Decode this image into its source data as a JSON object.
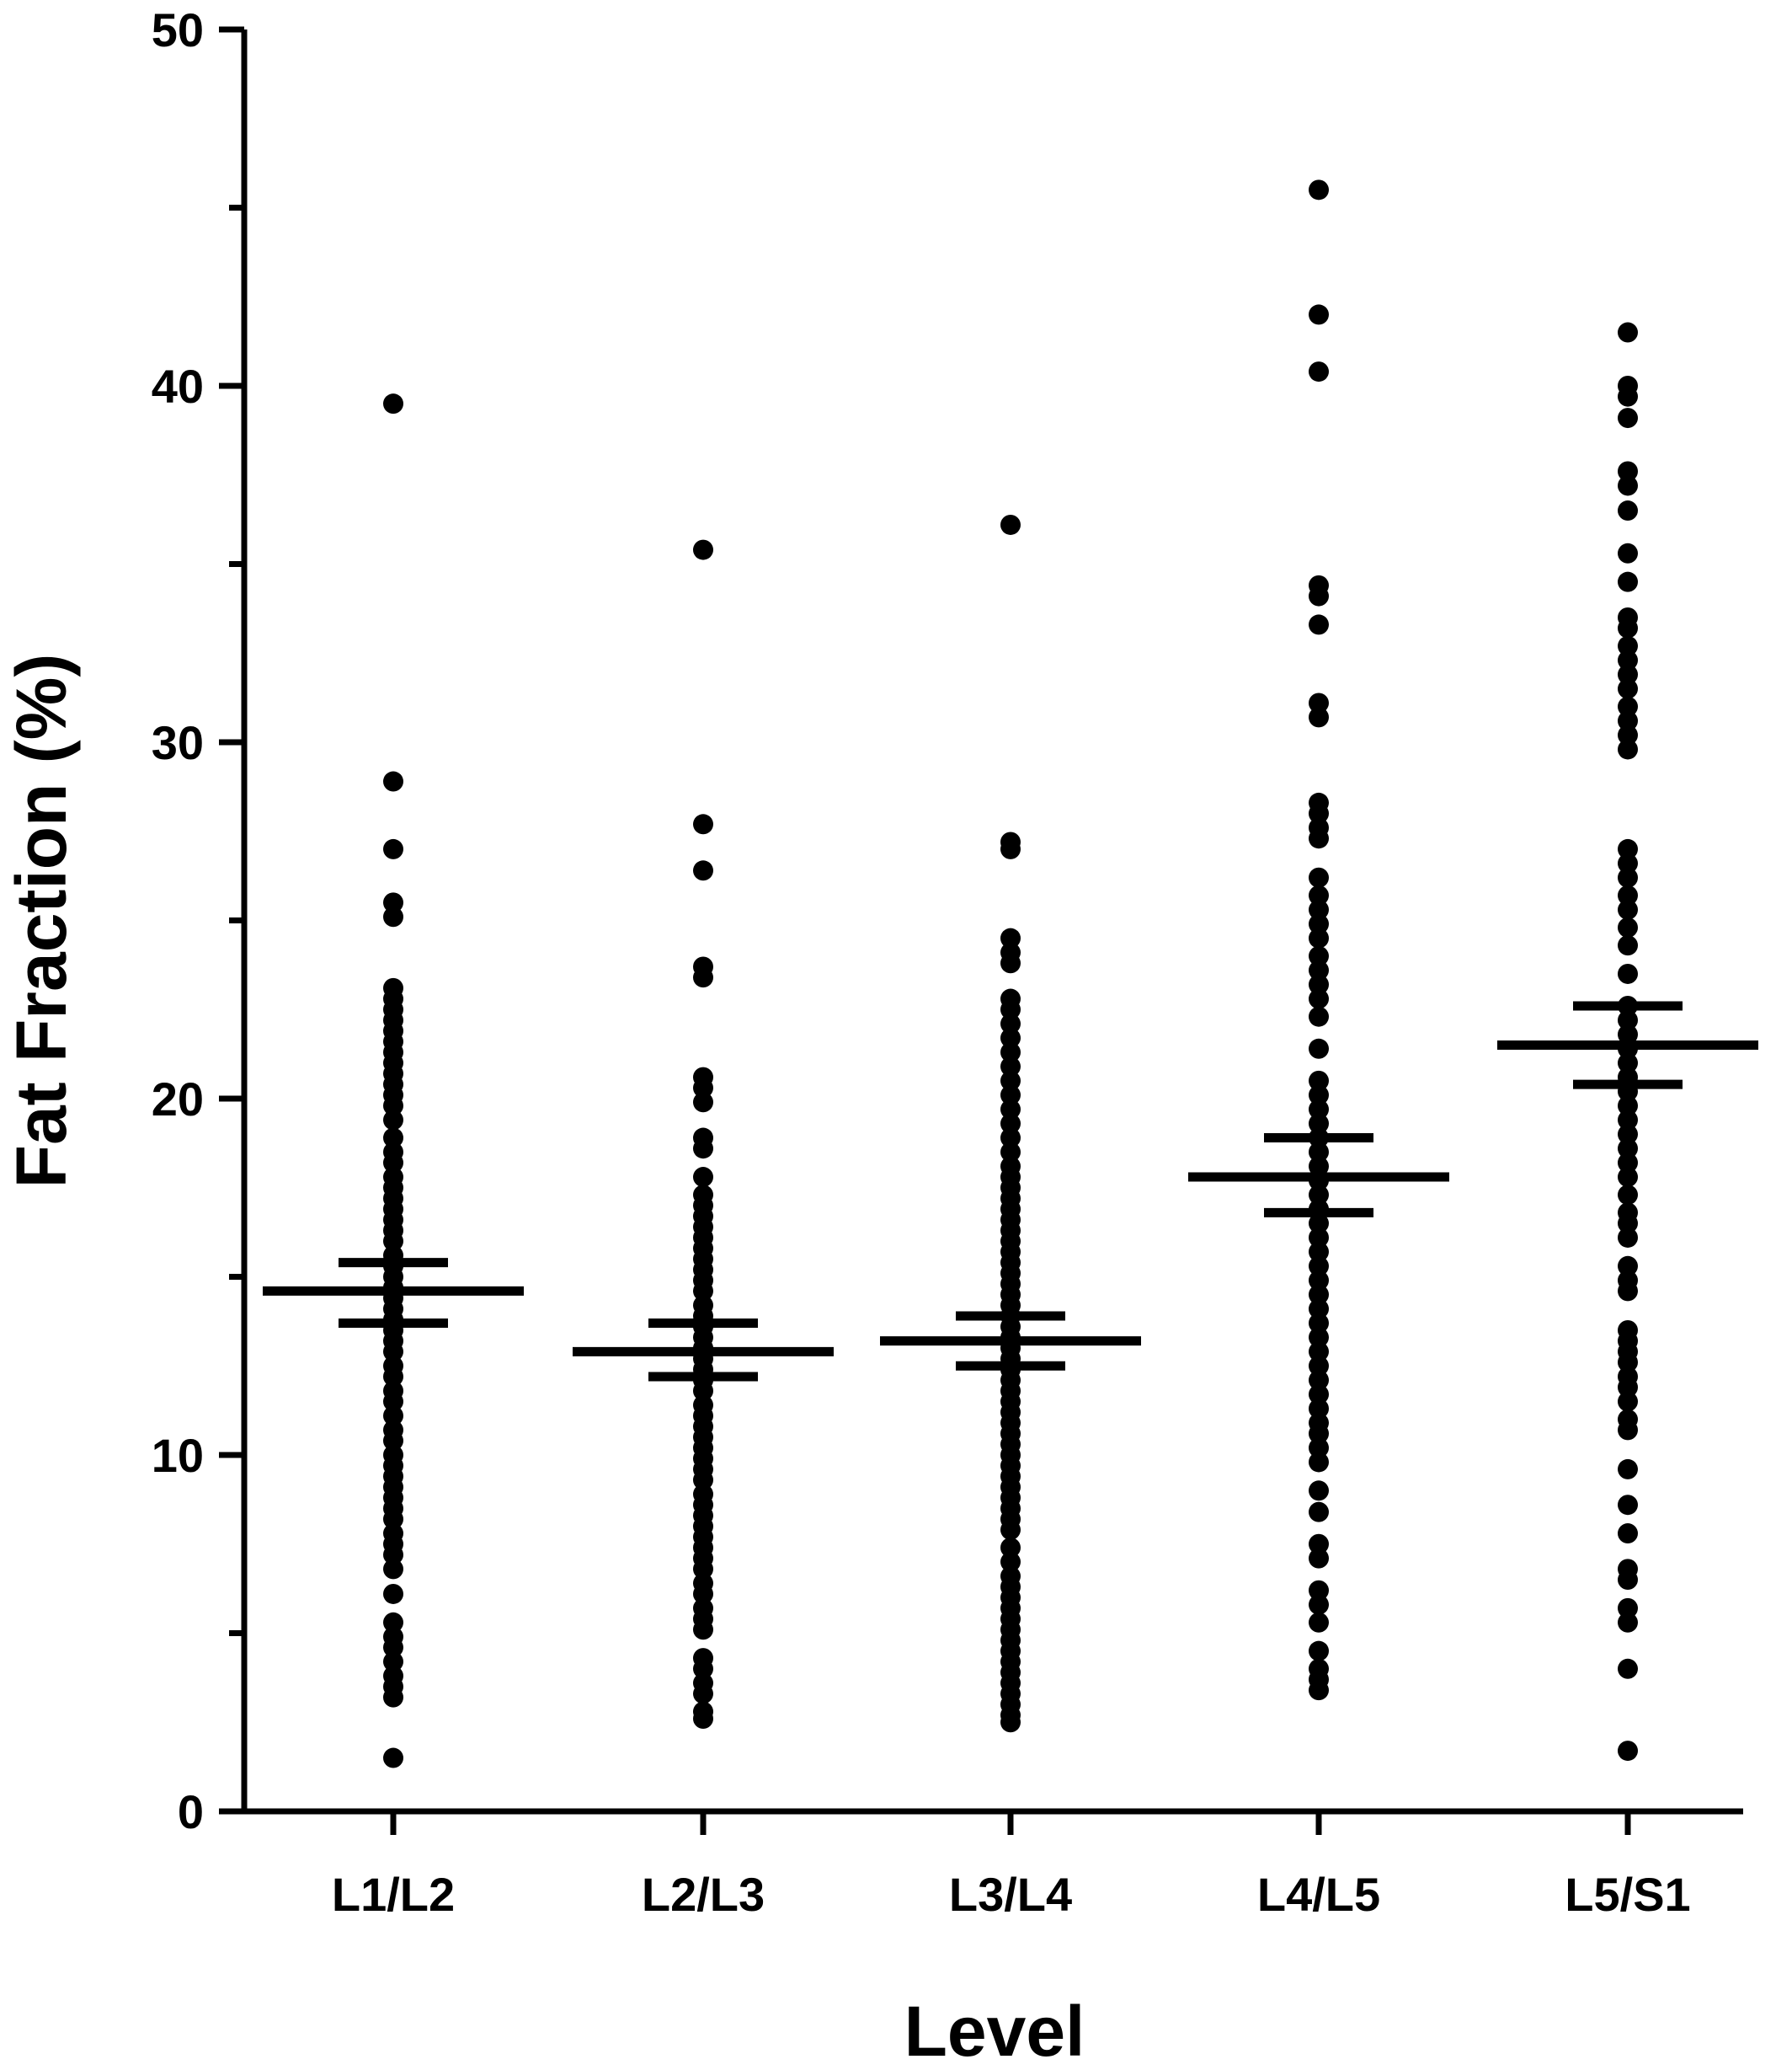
{
  "chart_data": {
    "type": "scatter",
    "subtype": "column scatter (dot plot) with mean and error bars",
    "title": "",
    "xlabel": "Level",
    "ylabel": "Fat Fraction (%)",
    "ylim": [
      0,
      50
    ],
    "y_major_ticks": [
      0,
      10,
      20,
      30,
      40,
      50
    ],
    "y_tick_labels": [
      "0",
      "10",
      "20",
      "30",
      "40",
      "50"
    ],
    "y_minor_ticks": [
      5,
      15,
      25,
      35,
      45
    ],
    "categories": [
      "L1/L2",
      "L2/L3",
      "L3/L4",
      "L4/L5",
      "L5/S1"
    ],
    "grid": false,
    "legend": "none",
    "color": "#000000",
    "series": [
      {
        "category": "L1/L2",
        "mean": 14.6,
        "error": [
          13.7,
          15.4
        ],
        "points": [
          39.5,
          28.9,
          27.0,
          25.5,
          25.1,
          23.1,
          22.8,
          22.5,
          22.2,
          21.9,
          21.6,
          21.3,
          21.0,
          20.7,
          20.4,
          20.1,
          19.8,
          19.4,
          18.9,
          18.5,
          18.2,
          17.8,
          17.5,
          17.2,
          16.9,
          16.6,
          16.3,
          16.0,
          15.6,
          15.3,
          15.0,
          14.7,
          14.4,
          14.1,
          13.8,
          13.5,
          13.2,
          12.9,
          12.5,
          12.2,
          11.8,
          11.5,
          11.1,
          10.7,
          10.4,
          10.0,
          9.7,
          9.4,
          9.1,
          8.8,
          8.5,
          8.2,
          7.8,
          7.5,
          7.2,
          6.8,
          6.1,
          5.3,
          4.9,
          4.6,
          4.2,
          3.8,
          3.5,
          3.2,
          1.5
        ]
      },
      {
        "category": "L2/L3",
        "mean": 12.9,
        "error": [
          12.2,
          13.7
        ],
        "points": [
          35.4,
          27.7,
          26.4,
          23.7,
          23.4,
          20.6,
          20.3,
          19.9,
          18.9,
          18.6,
          17.8,
          17.3,
          17.0,
          16.7,
          16.4,
          16.1,
          15.8,
          15.5,
          15.2,
          14.9,
          14.6,
          14.2,
          13.9,
          13.6,
          13.3,
          13.0,
          12.7,
          12.4,
          12.1,
          11.8,
          11.4,
          11.1,
          10.8,
          10.5,
          10.2,
          9.9,
          9.6,
          9.3,
          8.9,
          8.6,
          8.3,
          8.0,
          7.7,
          7.4,
          7.1,
          6.8,
          6.4,
          6.1,
          5.7,
          5.4,
          5.1,
          4.3,
          4.0,
          3.6,
          3.3,
          2.8,
          2.6
        ]
      },
      {
        "category": "L3/L4",
        "mean": 13.2,
        "error": [
          12.5,
          13.9
        ],
        "points": [
          36.1,
          27.2,
          27.0,
          24.5,
          24.1,
          23.8,
          22.8,
          22.5,
          22.1,
          21.7,
          21.3,
          20.9,
          20.5,
          20.1,
          19.7,
          19.3,
          18.9,
          18.5,
          18.1,
          17.8,
          17.5,
          17.2,
          16.9,
          16.6,
          16.3,
          16.0,
          15.7,
          15.4,
          15.1,
          14.8,
          14.5,
          14.2,
          13.9,
          13.6,
          13.3,
          13.0,
          12.7,
          12.4,
          12.1,
          11.8,
          11.5,
          11.2,
          10.9,
          10.6,
          10.3,
          10.0,
          9.7,
          9.4,
          9.1,
          8.8,
          8.5,
          8.2,
          7.9,
          7.4,
          7.0,
          6.6,
          6.3,
          6.0,
          5.7,
          5.4,
          5.1,
          4.8,
          4.5,
          4.2,
          3.9,
          3.6,
          3.3,
          3.0,
          2.7,
          2.5
        ]
      },
      {
        "category": "L4/L5",
        "mean": 17.8,
        "error": [
          16.8,
          18.9
        ],
        "points": [
          45.5,
          42.0,
          40.4,
          34.4,
          34.1,
          33.3,
          31.1,
          30.7,
          28.3,
          28.0,
          27.6,
          27.3,
          26.2,
          25.7,
          25.3,
          24.9,
          24.5,
          24.0,
          23.6,
          23.2,
          22.8,
          22.3,
          21.4,
          20.5,
          20.1,
          19.7,
          19.3,
          18.9,
          18.5,
          18.1,
          17.7,
          17.3,
          16.9,
          16.5,
          16.1,
          15.7,
          15.3,
          14.9,
          14.5,
          14.1,
          13.7,
          13.3,
          12.9,
          12.5,
          12.1,
          11.7,
          11.3,
          10.9,
          10.6,
          10.2,
          9.8,
          9.0,
          8.4,
          7.5,
          7.1,
          6.2,
          5.8,
          5.3,
          4.5,
          4.0,
          3.7,
          3.4
        ]
      },
      {
        "category": "L5/S1",
        "mean": 21.5,
        "error": [
          20.4,
          22.6
        ],
        "points": [
          41.5,
          40.0,
          39.7,
          39.1,
          37.6,
          37.2,
          36.5,
          35.3,
          34.5,
          33.5,
          33.2,
          32.7,
          32.3,
          31.9,
          31.5,
          31.0,
          30.6,
          30.2,
          29.8,
          27.0,
          26.6,
          26.2,
          25.7,
          25.3,
          24.8,
          24.3,
          23.5,
          22.6,
          22.2,
          21.8,
          21.4,
          21.0,
          20.6,
          20.2,
          19.8,
          19.4,
          19.0,
          18.6,
          18.2,
          17.8,
          17.3,
          16.8,
          16.5,
          16.1,
          15.3,
          14.9,
          14.6,
          13.5,
          13.2,
          12.9,
          12.6,
          12.2,
          11.9,
          11.5,
          11.0,
          10.7,
          9.6,
          8.6,
          7.8,
          6.8,
          6.5,
          5.7,
          5.3,
          4.0,
          1.7
        ]
      }
    ]
  }
}
